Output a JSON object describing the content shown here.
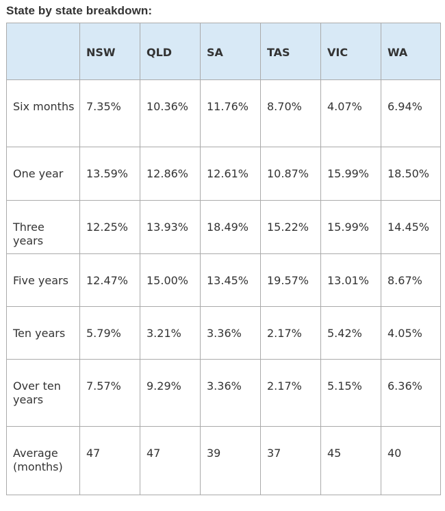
{
  "title": "State by state breakdown:",
  "table": {
    "columns": [
      "",
      "NSW",
      "QLD",
      "SA",
      "TAS",
      "VIC",
      "WA"
    ],
    "rows": [
      {
        "label": "Six months",
        "values": [
          "7.35%",
          "10.36%",
          "11.76%",
          "8.70%",
          "4.07%",
          "6.94%"
        ]
      },
      {
        "label": "One year",
        "values": [
          "13.59%",
          "12.86%",
          "12.61%",
          "10.87%",
          "15.99%",
          "18.50%"
        ]
      },
      {
        "label": "Three years",
        "values": [
          "12.25%",
          "13.93%",
          "18.49%",
          "15.22%",
          "15.99%",
          "14.45%"
        ]
      },
      {
        "label": "Five years",
        "values": [
          "12.47%",
          "15.00%",
          "13.45%",
          "19.57%",
          "13.01%",
          "8.67%"
        ]
      },
      {
        "label": "Ten years",
        "values": [
          "5.79%",
          "3.21%",
          "3.36%",
          "2.17%",
          "5.42%",
          "4.05%"
        ]
      },
      {
        "label": "Over ten years",
        "values": [
          "7.57%",
          "9.29%",
          "3.36%",
          "2.17%",
          "5.15%",
          "6.36%"
        ]
      },
      {
        "label": "Average (months)",
        "values": [
          "47",
          "47",
          "39",
          "37",
          "45",
          "40"
        ]
      }
    ]
  },
  "colors": {
    "header_background": "#d8e9f6",
    "border": "#aaaaaa",
    "text": "#333333"
  }
}
